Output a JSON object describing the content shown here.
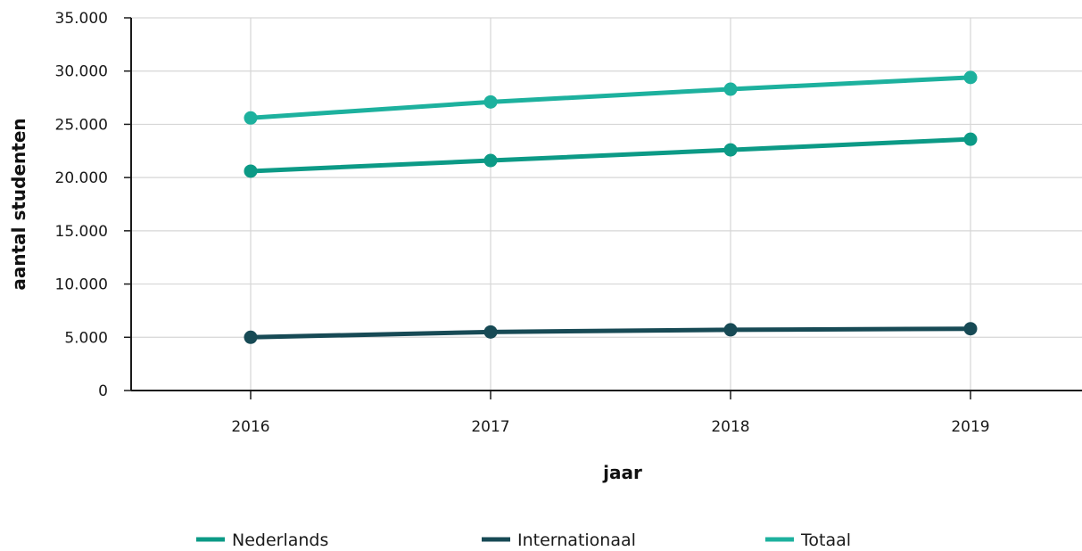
{
  "chart_data": {
    "type": "line",
    "x": [
      "2016",
      "2017",
      "2018",
      "2019"
    ],
    "xlabel": "jaar",
    "ylabel": "aantal studenten",
    "ylim": [
      0,
      35000
    ],
    "yticks": [
      "0",
      "5.000",
      "10.000",
      "15.000",
      "20.000",
      "25.000",
      "30.000",
      "35.000"
    ],
    "grid": true,
    "legend_position": "bottom",
    "series": [
      {
        "name": "Nederlands",
        "values": [
          20600,
          21600,
          22600,
          23600
        ],
        "color": "#0c9a86"
      },
      {
        "name": "Internationaal",
        "values": [
          5000,
          5500,
          5700,
          5800
        ],
        "color": "#174a55"
      },
      {
        "name": "Totaal",
        "values": [
          25600,
          27100,
          28300,
          29400
        ],
        "color": "#1db19e"
      }
    ]
  }
}
